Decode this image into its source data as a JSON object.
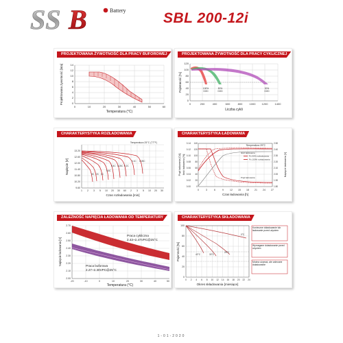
{
  "header": {
    "logo_text": "SSB",
    "logo_tagline": "Battery",
    "product_title": "SBL 200-12i"
  },
  "colors": {
    "accent": "#c4161c",
    "grid": "#cccccc",
    "panel_border": "#ececec"
  },
  "panels": {
    "float_life": {
      "title": "PROJEKTOWANA ŻYWOTNOŚĆ DLA PRACY BUFOROWEJ",
      "ylabel": "Projektowana żywotność [lata]",
      "xlabel": "Temperatura (°C)",
      "xticks": [
        "0",
        "10",
        "20",
        "30",
        "40",
        "50",
        "60"
      ],
      "yticks": [
        "0",
        "2",
        "4",
        "6",
        "8",
        "10",
        "12",
        "14"
      ]
    },
    "cycle_life": {
      "title": "PROJEKTOWANA ŻYWOTNOŚĆ DLA PRACY CYKLICZNEJ",
      "ylabel": "Pojemność [%]",
      "xlabel": "Liczba cykli",
      "xticks": [
        "0",
        "200",
        "400",
        "600",
        "800",
        "1000",
        "1200",
        "1400"
      ],
      "yticks": [
        "0",
        "20",
        "40",
        "60",
        "80",
        "100",
        "120"
      ],
      "curve_labels": [
        {
          "pct": "100%",
          "dod": "DOD"
        },
        {
          "pct": "50%",
          "dod": "DOD"
        },
        {
          "pct": "30%",
          "dod": "DOD"
        }
      ]
    },
    "discharge": {
      "title": "CHARAKTERYSTYKA ROZŁADOWANIA",
      "ylabel": "Napięcie [V]",
      "xlabel": "Czas rozładowania [min]",
      "temp_note": "Temperatura 25°C (77°F)",
      "yticks": [
        "9.60",
        "10.20",
        "10.80",
        "11.40",
        "12.00",
        "12.60",
        "13.20"
      ],
      "xticks": [
        "1",
        "2",
        "3",
        "5",
        "10",
        "20",
        "30",
        "60",
        "2",
        "3",
        "5",
        "10",
        "20",
        "30"
      ],
      "rate_labels": [
        "0.05C",
        "0.1C",
        "0.2C",
        "0.25C",
        "0.4C",
        "0.6C",
        "1C",
        "2C",
        "3C"
      ]
    },
    "charging": {
      "title": "CHARAKTERYSTYKA ŁADOWANIA",
      "ylabel_left": "Prąd ładowania [CA]",
      "ylabel_mid": "Ilość ładowania [%]",
      "ylabel_right": "Napięcie ładowania [V]",
      "xlabel": "Czas ładowania [h]",
      "temp_note": "Temperatura 25°C",
      "legend": [
        "Po 50% rozładowania",
        "Po 100% rozładowania"
      ],
      "current_label": "Prąd ładowania",
      "charge_label": "Ilość ładowania",
      "xticks": [
        "0",
        "3",
        "6",
        "9",
        "12",
        "15",
        "18",
        "21",
        "24",
        "27"
      ],
      "yticks_left": [
        "0.00",
        "0.02",
        "0.04",
        "0.06",
        "0.08",
        "0.10",
        "0.12",
        "0.14"
      ],
      "yticks_mid": [
        "0",
        "20",
        "40",
        "60",
        "80",
        "100",
        "120",
        "140"
      ],
      "yticks_right": [
        "1.80",
        "1.90",
        "2.00",
        "2.10",
        "2.20",
        "2.30",
        "2.40",
        "2.50"
      ]
    },
    "charge_voltage_temp": {
      "title": "ZALEŻNOŚĆ NAPIĘCIA ŁADOWANIA OD TEMPERATURY",
      "ylabel": "Napięcie ładowania [V]",
      "xlabel": "Temperatura (°C)",
      "cycle_label_1": "Praca cykliczna",
      "cycle_label_2": "2.43~2.47VPC@25°C",
      "float_label_1": "Praca buforowa",
      "float_label_2": "2.27~2.30VPC@25°C",
      "xticks": [
        "-20",
        "-10",
        "0",
        "10",
        "20",
        "30",
        "40",
        "50"
      ],
      "yticks": [
        "2.00",
        "2.10",
        "2.20",
        "2.30",
        "2.40",
        "2.50",
        "2.60",
        "2.70"
      ]
    },
    "storage": {
      "title": "CHARAKTERYSTYKA SKŁADOWANIA",
      "ylabel": "Pojemność [%]",
      "xlabel": "Okres składowania [miesiące]",
      "xticks": [
        "0",
        "2",
        "4",
        "6",
        "8",
        "10",
        "12",
        "14",
        "16",
        "18",
        "20",
        "22",
        "24"
      ],
      "yticks": [
        "0",
        "20",
        "40",
        "60",
        "80",
        "100"
      ],
      "temp_labels": [
        "40°C",
        "30°C",
        "25°C",
        "0°C"
      ],
      "notes": [
        "Konieczne doładowanie lub ładowanie przed użyciem",
        "Wymagane doładowanie przed użyciem",
        "Można używać, ale zalecane doładowanie"
      ]
    }
  },
  "footer": {
    "text": "1-01-2020"
  }
}
